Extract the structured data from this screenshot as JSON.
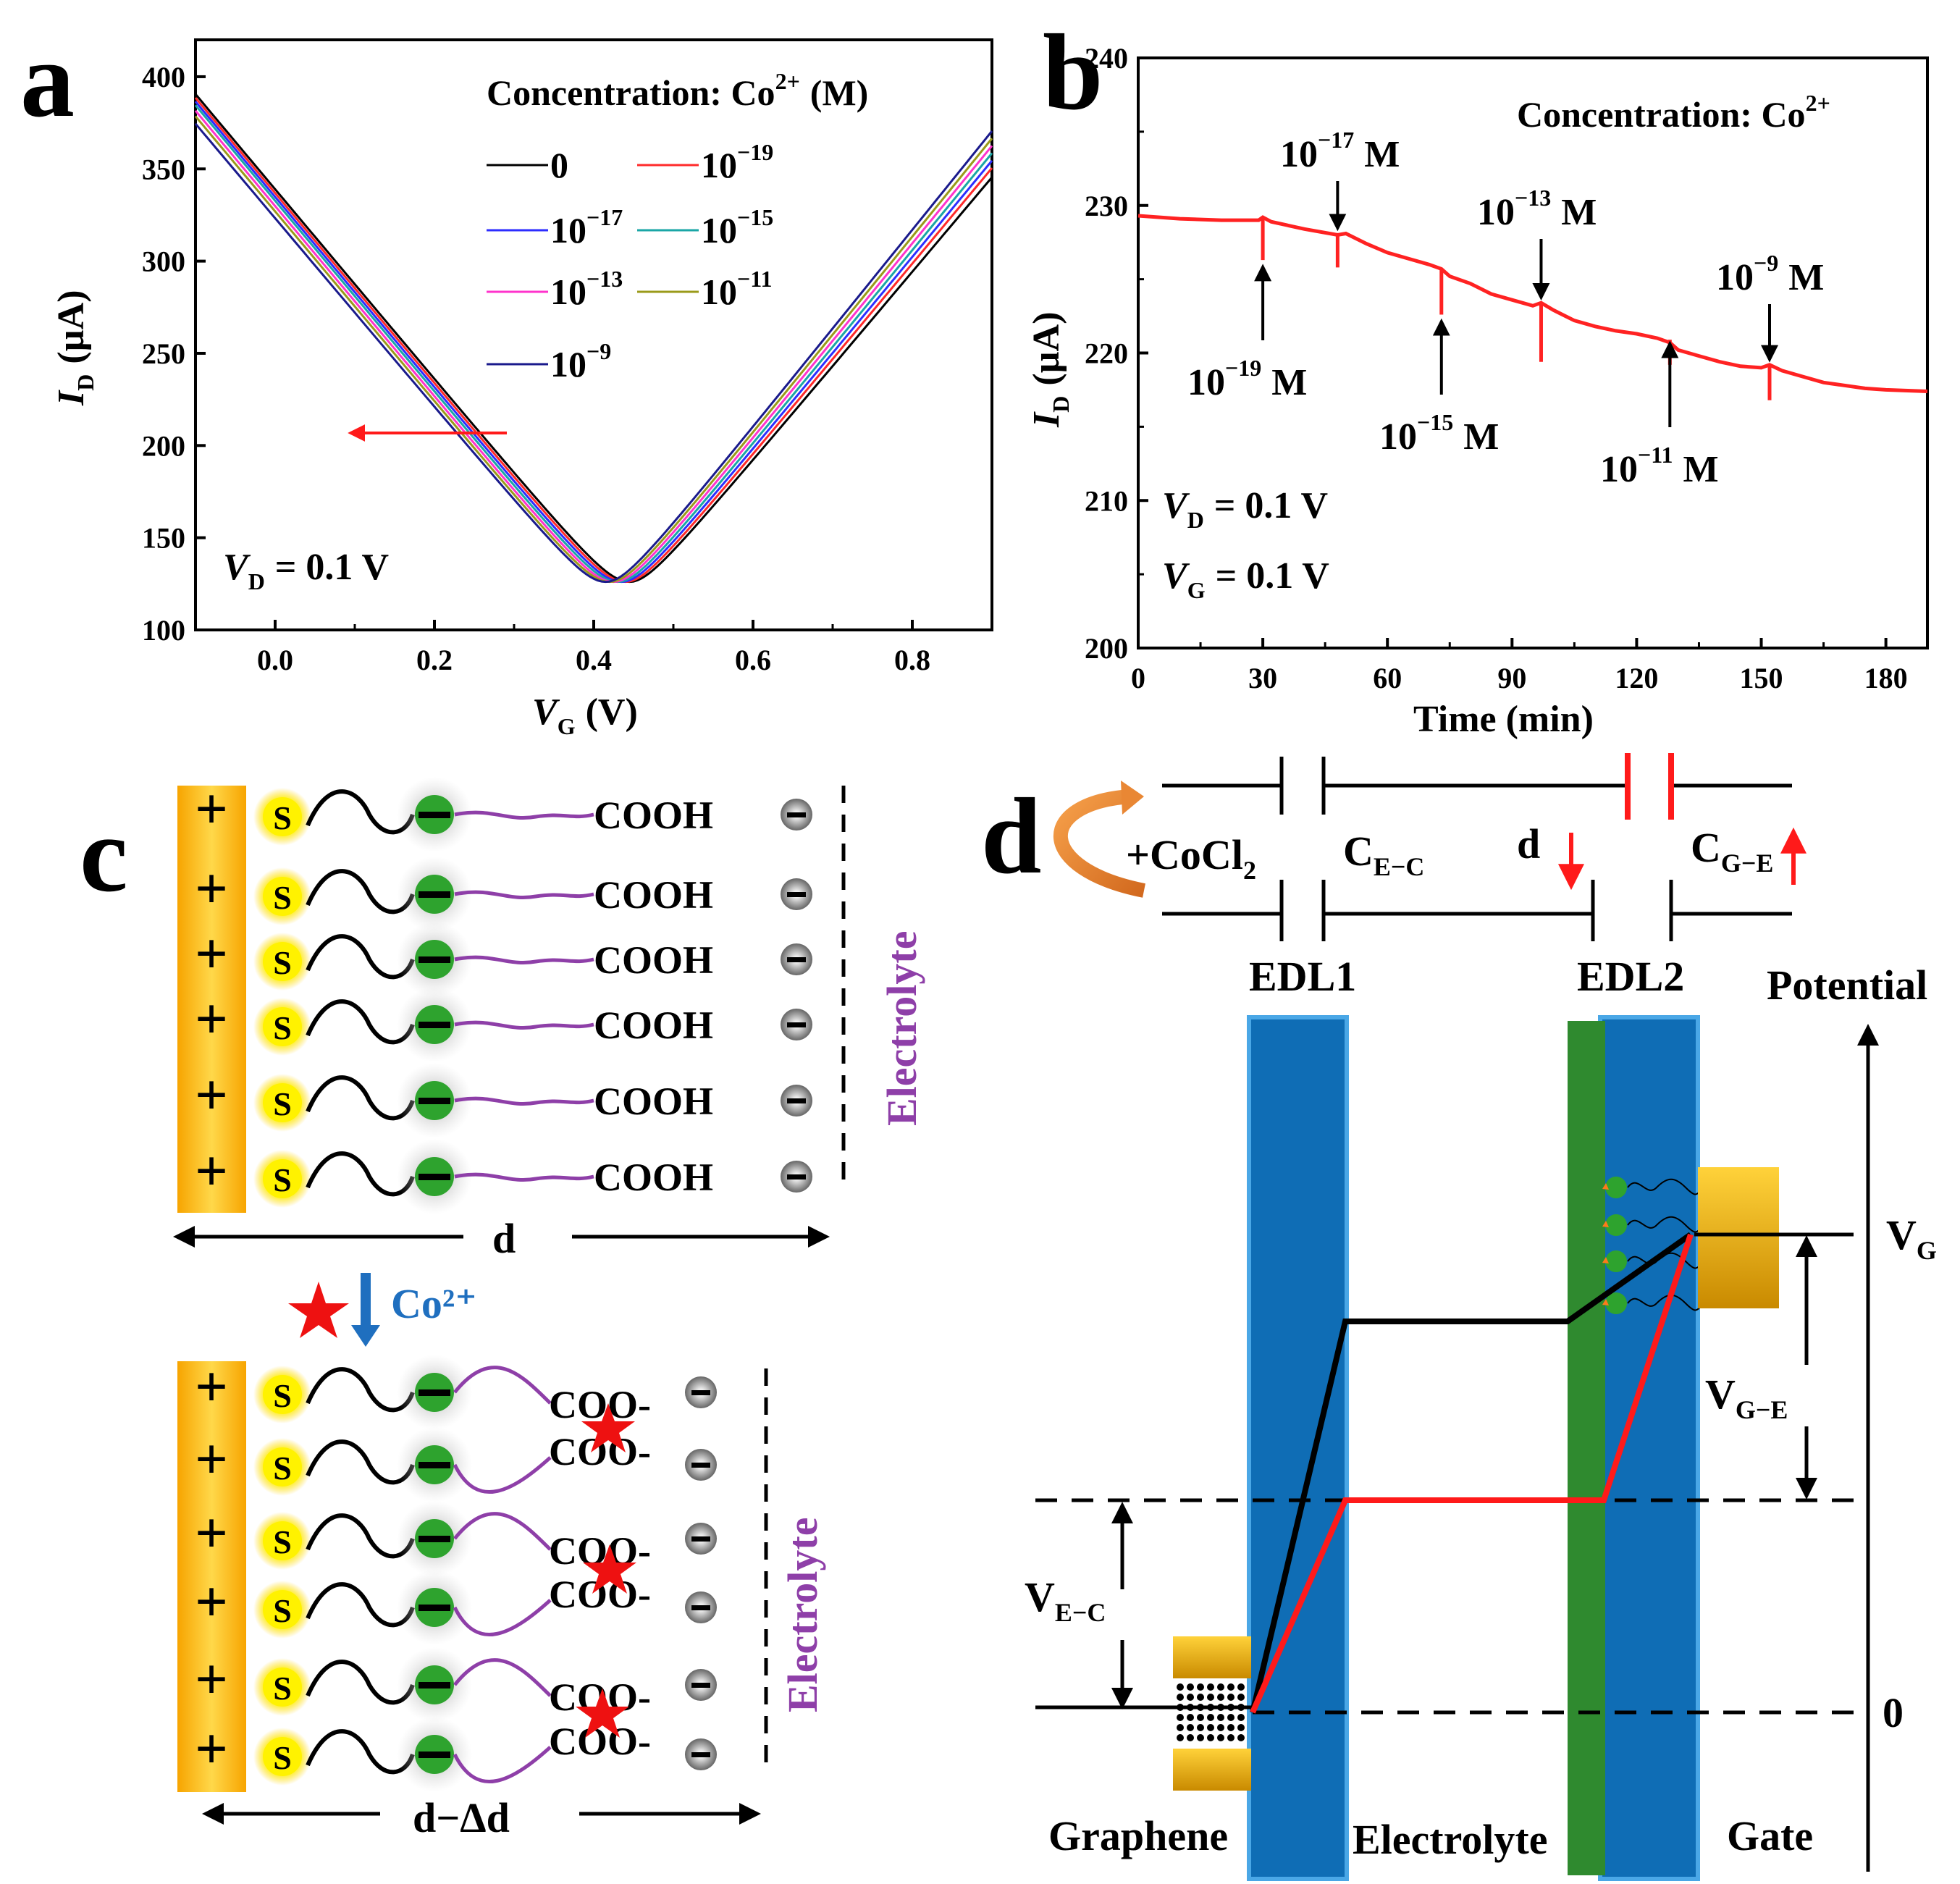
{
  "figure": {
    "panels": {
      "a": "a",
      "b": "b",
      "c": "c",
      "d": "d"
    }
  },
  "chart_data": [
    {
      "type": "line",
      "panel": "a",
      "xlabel_symbol": "V",
      "xlabel_sub": "G",
      "xlabel_unit": "(V)",
      "ylabel_symbol": "I",
      "ylabel_sub": "D",
      "ylabel_unit": "(µA)",
      "xlim": [
        -0.1,
        0.9
      ],
      "ylim": [
        100,
        420
      ],
      "xticks": [
        0.0,
        0.2,
        0.4,
        0.6,
        0.8
      ],
      "xtick_labels": [
        "0.0",
        "0.2",
        "0.4",
        "0.6",
        "0.8"
      ],
      "yticks": [
        100,
        150,
        200,
        250,
        300,
        350,
        400
      ],
      "ytick_labels": [
        "100",
        "150",
        "200",
        "250",
        "300",
        "350",
        "400"
      ],
      "legend_title": "Concentration: Co",
      "legend_title_sup": "2+",
      "legend_title_unit": "(M)",
      "annotation_pre": "V",
      "annotation_sub": "D",
      "annotation_post": "= 0.1 V",
      "series": [
        {
          "name": "0",
          "base": "0",
          "exp": "",
          "color": "#000000",
          "dirac": 0.445,
          "left_end": 390,
          "right_end": 345
        },
        {
          "name": "10^-19",
          "base": "10",
          "exp": "−19",
          "color": "#ff2a2a",
          "dirac": 0.44,
          "left_end": 388,
          "right_end": 350
        },
        {
          "name": "10^-17",
          "base": "10",
          "exp": "−17",
          "color": "#2d2dff",
          "dirac": 0.435,
          "left_end": 386,
          "right_end": 354
        },
        {
          "name": "10^-15",
          "base": "10",
          "exp": "−15",
          "color": "#1aa6a6",
          "dirac": 0.43,
          "left_end": 384,
          "right_end": 358
        },
        {
          "name": "10^-13",
          "base": "10",
          "exp": "−13",
          "color": "#ff33cc",
          "dirac": 0.425,
          "left_end": 381,
          "right_end": 362
        },
        {
          "name": "10^-11",
          "base": "10",
          "exp": "−11",
          "color": "#9a9a1a",
          "dirac": 0.42,
          "left_end": 378,
          "right_end": 366
        },
        {
          "name": "10^-9",
          "base": "10",
          "exp": "−9",
          "color": "#1a1a8c",
          "dirac": 0.415,
          "left_end": 374,
          "right_end": 370
        }
      ],
      "min_current": 126
    },
    {
      "type": "line",
      "panel": "b",
      "xlabel": "Time (min)",
      "ylabel_symbol": "I",
      "ylabel_sub": "D",
      "ylabel_unit": "(µA)",
      "xlim": [
        0,
        190
      ],
      "ylim": [
        200,
        240
      ],
      "xticks": [
        0,
        30,
        60,
        90,
        120,
        150,
        180
      ],
      "xtick_labels": [
        "0",
        "30",
        "60",
        "90",
        "120",
        "150",
        "180"
      ],
      "yticks": [
        200,
        210,
        220,
        230,
        240
      ],
      "ytick_labels": [
        "200",
        "210",
        "220",
        "230",
        "240"
      ],
      "title_text": "Concentration: Co",
      "title_sup": "2+",
      "conditions": [
        {
          "pre": "V",
          "sub": "D",
          "post": "= 0.1 V"
        },
        {
          "pre": "V",
          "sub": "G",
          "post": "= 0.1 V"
        }
      ],
      "series": [
        {
          "name": "I_D",
          "color": "#ff2222",
          "x": [
            0,
            10,
            20,
            29,
            30,
            32,
            40,
            48,
            50,
            55,
            60,
            65,
            70,
            73,
            75,
            80,
            85,
            90,
            95,
            97,
            100,
            105,
            110,
            115,
            120,
            125,
            128,
            130,
            135,
            140,
            145,
            150,
            152,
            155,
            160,
            165,
            170,
            175,
            180,
            190
          ],
          "y": [
            229.3,
            229.1,
            229.0,
            229.0,
            229.2,
            228.9,
            228.4,
            228.0,
            228.1,
            227.4,
            226.8,
            226.4,
            226.0,
            225.7,
            225.2,
            224.7,
            224.0,
            223.6,
            223.2,
            223.4,
            222.9,
            222.2,
            221.8,
            221.5,
            221.3,
            221.0,
            220.7,
            220.2,
            219.8,
            219.4,
            219.1,
            219.0,
            219.2,
            218.8,
            218.4,
            218.0,
            217.8,
            217.6,
            217.5,
            217.4
          ]
        }
      ],
      "spikes": [
        {
          "x": 30,
          "y_top": 229.2,
          "y_bottom": 226.3
        },
        {
          "x": 48,
          "y_top": 228.1,
          "y_bottom": 225.8
        },
        {
          "x": 73,
          "y_top": 225.7,
          "y_bottom": 222.6
        },
        {
          "x": 97,
          "y_top": 223.4,
          "y_bottom": 219.4
        },
        {
          "x": 128,
          "y_top": 220.9,
          "y_bottom": 219.2
        },
        {
          "x": 152,
          "y_top": 219.2,
          "y_bottom": 216.8
        }
      ],
      "arrows": [
        {
          "label_base": "10",
          "label_exp": "−19",
          "label_unit": "M",
          "x": 30,
          "direction": "up"
        },
        {
          "label_base": "10",
          "label_exp": "−17",
          "label_unit": "M",
          "x": 48,
          "direction": "down"
        },
        {
          "label_base": "10",
          "label_exp": "−15",
          "label_unit": "M",
          "x": 73,
          "direction": "up"
        },
        {
          "label_base": "10",
          "label_exp": "−13",
          "label_unit": "M",
          "x": 97,
          "direction": "down"
        },
        {
          "label_base": "10",
          "label_exp": "−11",
          "label_unit": "M",
          "x": 128,
          "direction": "up"
        },
        {
          "label_base": "10",
          "label_exp": "−9",
          "label_unit": "M",
          "x": 152,
          "direction": "down"
        }
      ]
    }
  ],
  "schematic_c": {
    "rows_top": [
      "COOH",
      "COOH",
      "COOH",
      "COOH",
      "COOH",
      "COOH"
    ],
    "rows_bottom": [
      "COO-",
      "COO-",
      "COO-",
      "COO-",
      "COO-",
      "COO-"
    ],
    "s_label": "S",
    "electrolyte_label": "Electrolyte",
    "distance_top": "d",
    "distance_bottom": "d−Δd",
    "ion_label": "Co²⁺",
    "colors": {
      "electrode": "#f5b400",
      "sulfur": "#fff200",
      "linker": "#8e3fa8",
      "node": "#2ea32e",
      "ion": "#ee1111"
    }
  },
  "schematic_d": {
    "reagent_pre": "+CoCl",
    "reagent_sub": "2",
    "cap1_main": "C",
    "cap1_sub": "E−C",
    "cap2_main": "C",
    "cap2_sub": "G−E",
    "d_label": "d",
    "edl1": "EDL1",
    "edl2": "EDL2",
    "potential_label": "Potential",
    "vg_main": "V",
    "vg_sub": "G",
    "vge_main": "V",
    "vge_sub": "G−E",
    "vec_main": "V",
    "vec_sub": "E−C",
    "zero": "0",
    "graphene": "Graphene",
    "electrolyte": "Electrolyte",
    "gate": "Gate",
    "colors": {
      "edl_band": "#0f6db5",
      "green_layer": "#2f8a2f",
      "gate_metal": "#f2b40a",
      "red_line": "#ff1a1a"
    }
  }
}
